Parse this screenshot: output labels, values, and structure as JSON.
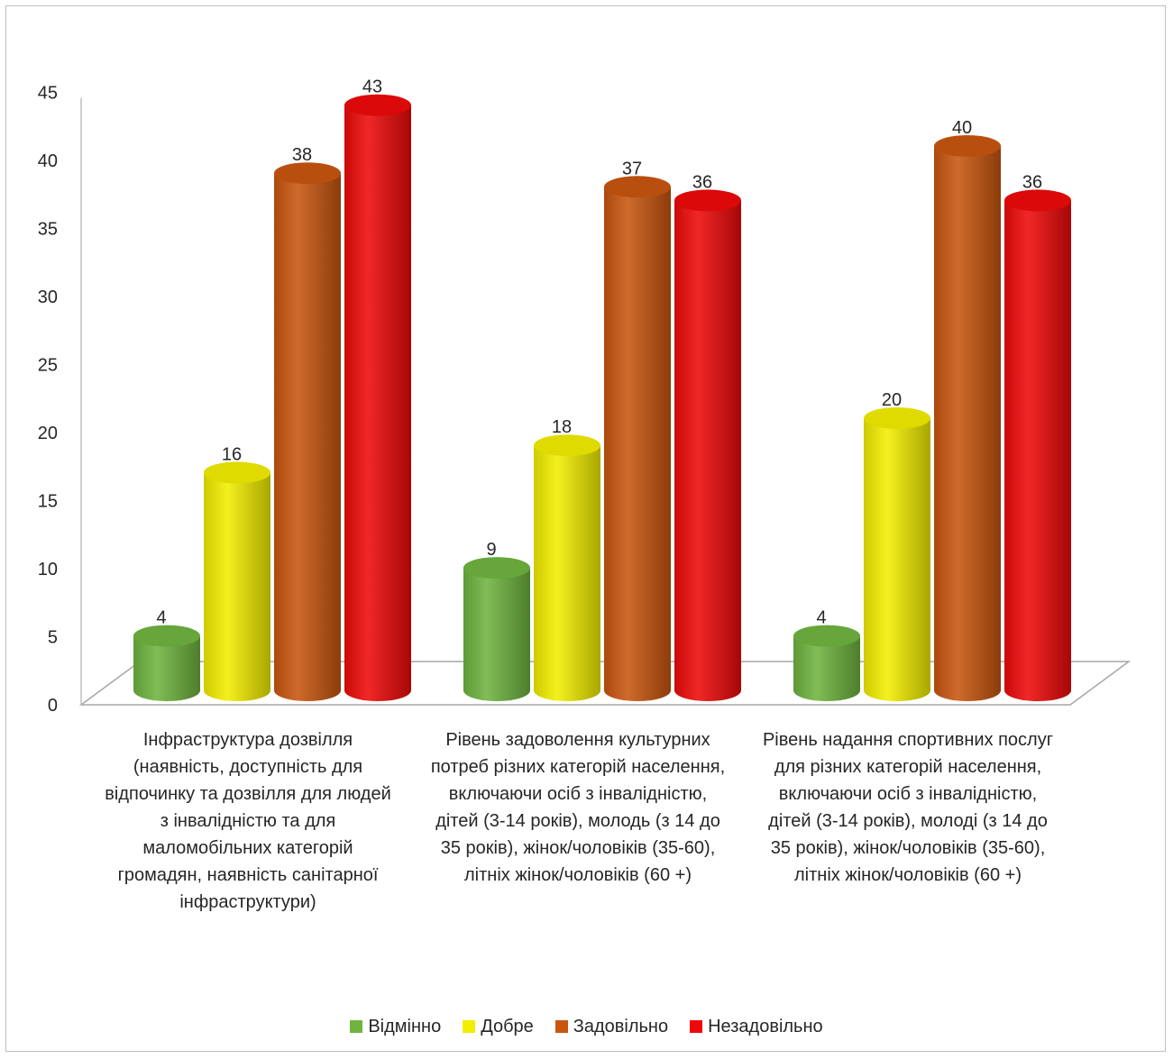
{
  "chart_data": {
    "type": "bar",
    "categories": [
      "Інфраструктура дозвілля (наявність, доступність для відпочинку та дозвілля для людей з інвалідністю та для маломобільних категорій громадян, наявність санітарної інфраструктури)",
      "Рівень задоволення культурних потреб різних категорій населення, включаючи осіб з інвалідністю, дітей (3-14 років), молодь (з 14 до 35 років), жінок/чоловіків (35-60), літніх жінок/чоловіків (60 +)",
      "Рівень надання спортивних послуг для різних категорій населення, включаючи осіб з інвалідністю, дітей (3-14 років), молоді (з 14 до 35 років), жінок/чоловіків (35-60), літніх жінок/чоловіків (60 +)"
    ],
    "series": [
      {
        "name": "Відмінно",
        "color": "#6fb43f",
        "values": [
          4,
          9,
          4
        ]
      },
      {
        "name": "Добре",
        "color": "#f2ee00",
        "values": [
          16,
          18,
          20
        ]
      },
      {
        "name": "Задовільно",
        "color": "#c9560f",
        "values": [
          38,
          37,
          40
        ]
      },
      {
        "name": "Незадовільно",
        "color": "#ee0a0a",
        "values": [
          43,
          36,
          36
        ]
      }
    ],
    "yticks": [
      "0",
      "5",
      "10",
      "15",
      "20",
      "25",
      "30",
      "35",
      "40",
      "45"
    ],
    "ylim": [
      0,
      45
    ],
    "legend_position": "bottom",
    "style": "3d-cylinder",
    "title": "",
    "xlabel": "",
    "ylabel": ""
  }
}
